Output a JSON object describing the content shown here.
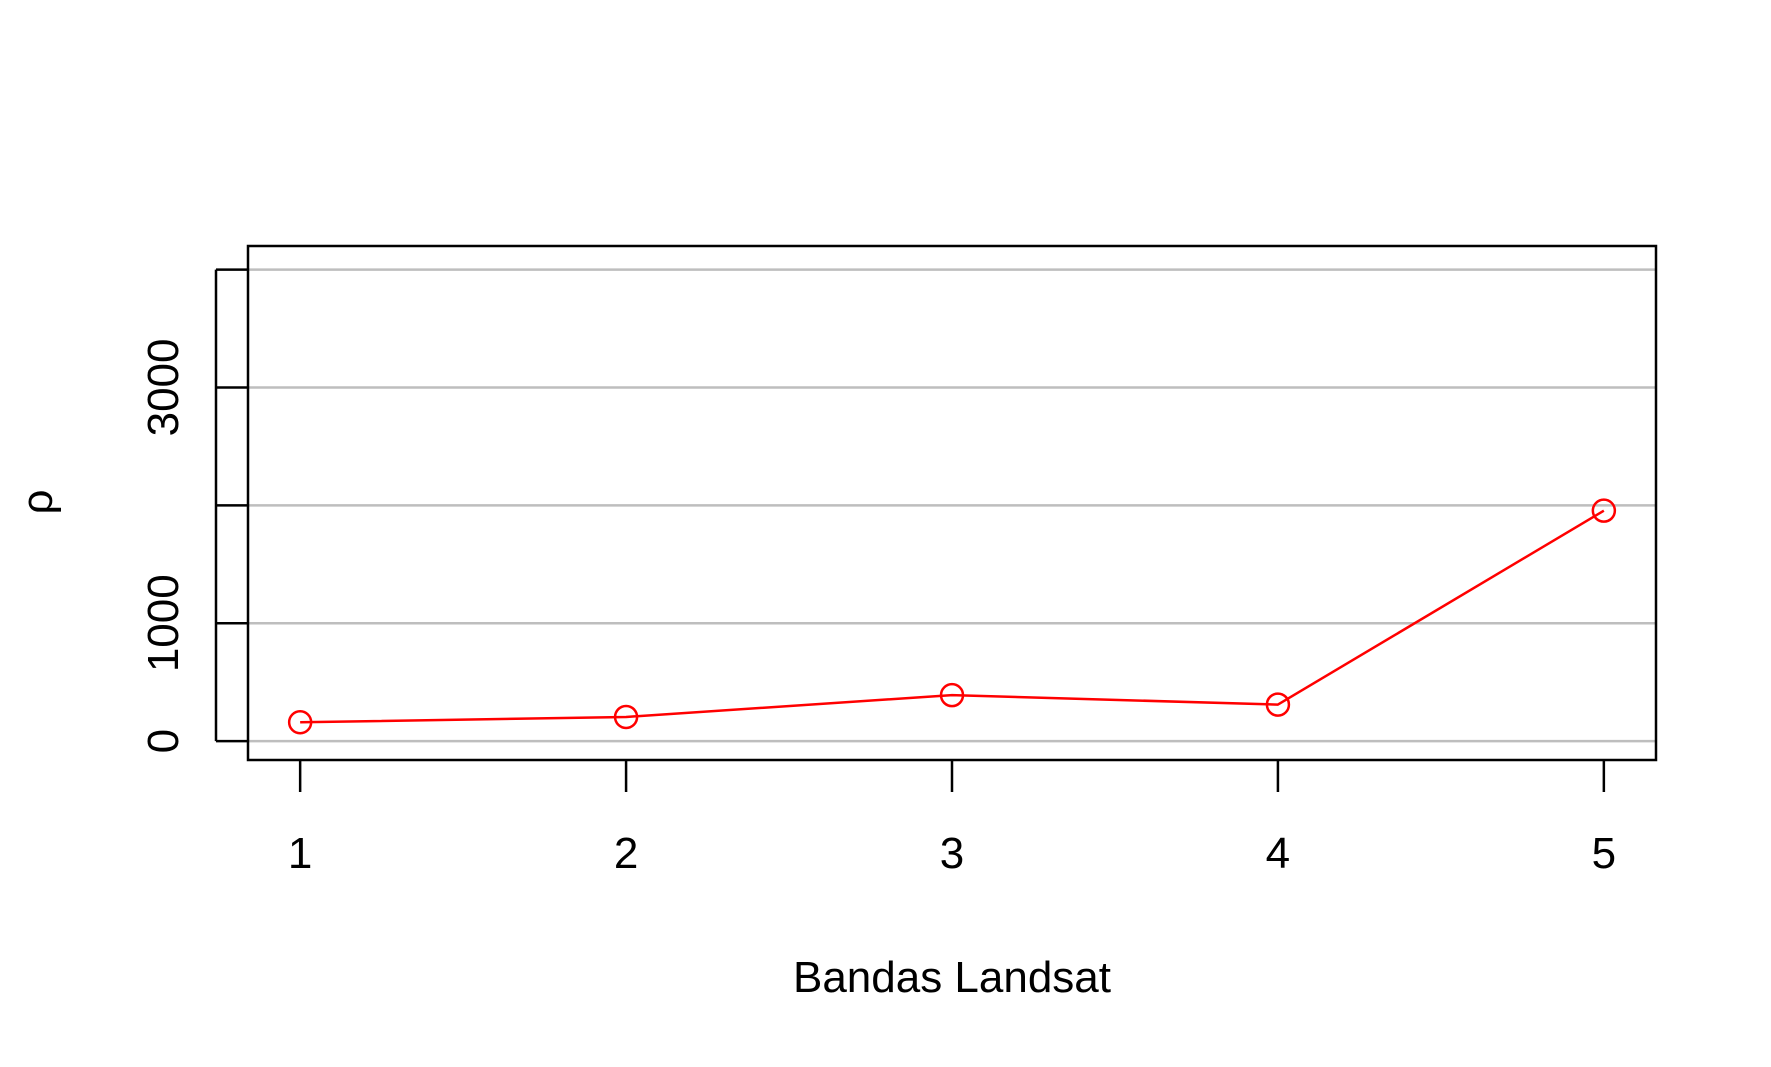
{
  "chart_data": {
    "type": "line",
    "title": "",
    "xlabel": "Bandas Landsat",
    "ylabel": "ρ",
    "categories": [
      "1",
      "2",
      "3",
      "4",
      "5"
    ],
    "x": [
      1,
      2,
      3,
      4,
      5
    ],
    "series": [
      {
        "values": [
          160,
          205,
          390,
          310,
          1955
        ],
        "color": "#ff0000",
        "marker": "open-circle"
      }
    ],
    "xlim": [
      0.84,
      5.16
    ],
    "ylim": [
      -160,
      4200
    ],
    "y_ticks": [
      0,
      1000,
      2000,
      3000,
      4000
    ],
    "y_tick_labels": [
      "0",
      "1000",
      "",
      "3000",
      ""
    ],
    "x_ticks": [
      1,
      2,
      3,
      4,
      5
    ],
    "x_tick_labels": [
      "1",
      "2",
      "3",
      "4",
      "5"
    ],
    "grid": "horizontal",
    "grid_color": "#bebebe",
    "axis_color": "#000000",
    "legend": "none"
  }
}
